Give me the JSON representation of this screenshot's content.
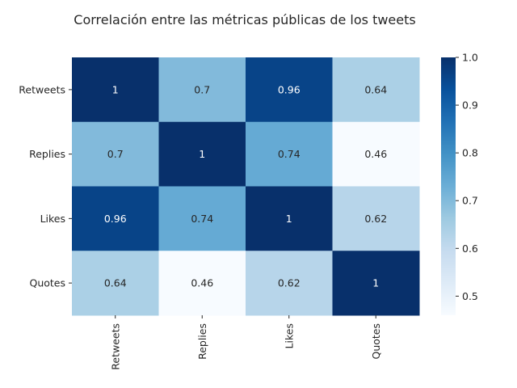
{
  "chart_data": {
    "type": "heatmap",
    "title": "Correlación entre las métricas públicas de los tweets",
    "xlabel": "",
    "ylabel": "",
    "rows": [
      "Retweets",
      "Replies",
      "Likes",
      "Quotes"
    ],
    "columns": [
      "Retweets",
      "Replies",
      "Likes",
      "Quotes"
    ],
    "values": [
      [
        1,
        0.7,
        0.96,
        0.64
      ],
      [
        0.7,
        1,
        0.74,
        0.46
      ],
      [
        0.96,
        0.74,
        1,
        0.62
      ],
      [
        0.64,
        0.46,
        0.62,
        1
      ]
    ],
    "cell_labels": [
      [
        "1",
        "0.7",
        "0.96",
        "0.64"
      ],
      [
        "0.7",
        "1",
        "0.74",
        "0.46"
      ],
      [
        "0.96",
        "0.74",
        "1",
        "0.62"
      ],
      [
        "0.64",
        "0.46",
        "0.62",
        "1"
      ]
    ],
    "colormap": "Blues",
    "color_range": [
      0.46,
      1.0
    ],
    "colorbar_ticks": [
      0.5,
      0.6,
      0.7,
      0.8,
      0.9,
      1.0
    ],
    "colorbar_tick_labels": [
      "0.5",
      "0.6",
      "0.7",
      "0.8",
      "0.9",
      "1.0"
    ],
    "annotations": true,
    "grid": false,
    "legend": "colorbar-right"
  }
}
